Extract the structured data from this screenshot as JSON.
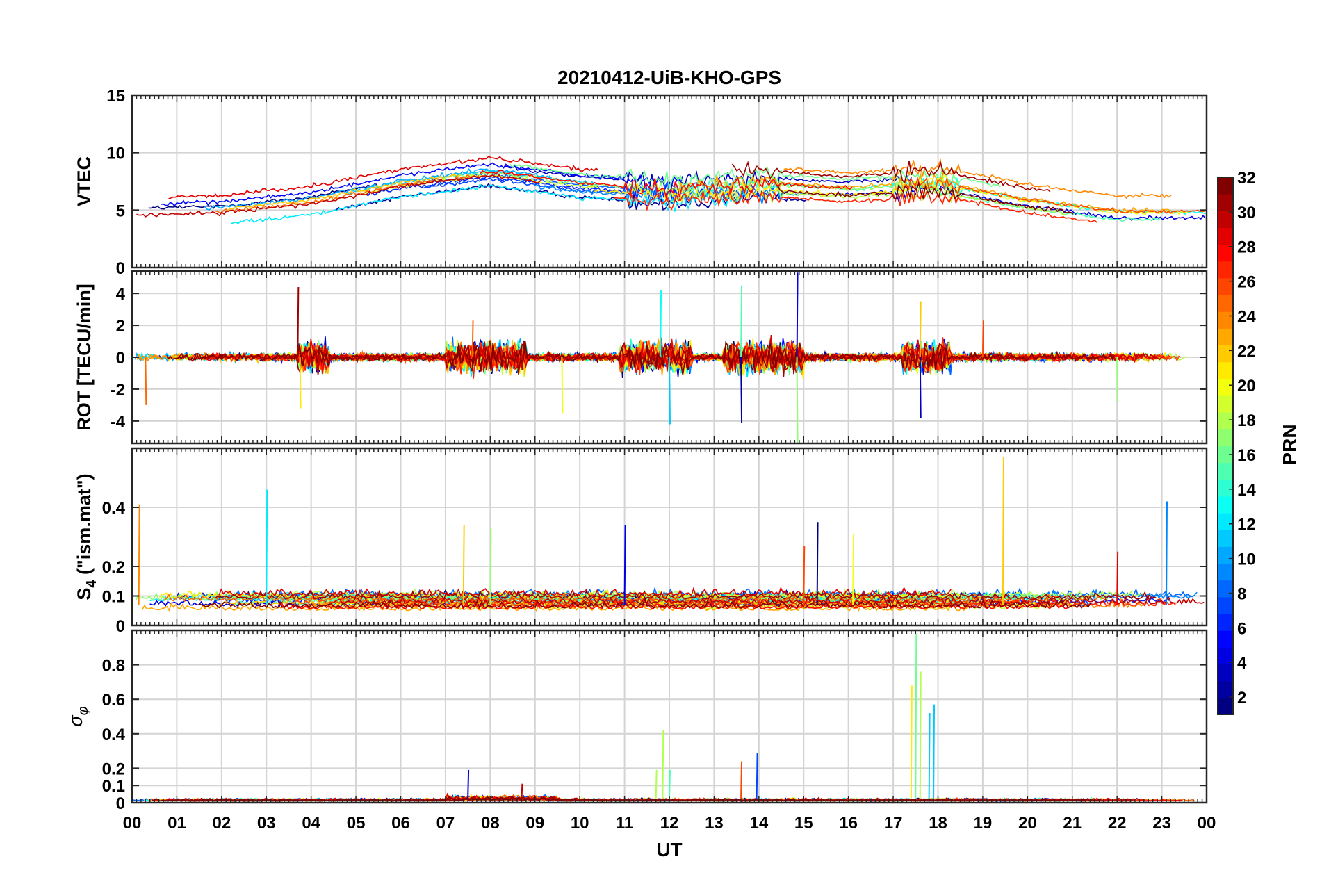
{
  "chart_data": {
    "type": "line",
    "title": "20210412-UiB-KHO-GPS",
    "xlabel": "UT",
    "x_tick_labels": [
      "00",
      "01",
      "02",
      "03",
      "04",
      "05",
      "06",
      "07",
      "08",
      "09",
      "10",
      "11",
      "12",
      "13",
      "14",
      "15",
      "16",
      "17",
      "18",
      "19",
      "20",
      "21",
      "22",
      "23",
      "00"
    ],
    "x_range_hours": [
      0,
      24
    ],
    "grid": true,
    "colorbar": {
      "label": "PRN",
      "range": [
        1,
        32
      ],
      "ticks": [
        2,
        4,
        6,
        8,
        10,
        12,
        14,
        16,
        18,
        20,
        22,
        24,
        26,
        28,
        30,
        32
      ],
      "colormap": "jet",
      "placement": "right"
    },
    "panels": [
      {
        "id": "vtec",
        "ylabel": "VTEC",
        "ylim": [
          0,
          15
        ],
        "yticks": [
          0,
          5,
          10,
          15
        ],
        "description_series": "VTEC per PRN, typical range 3-11 TECU, peak around 07-09 UT and 13-14 UT",
        "baseline_profile": {
          "hours": [
            0,
            2,
            4,
            6,
            8,
            10,
            12,
            14,
            16,
            18,
            20,
            22,
            24
          ],
          "values": [
            5,
            5.2,
            6,
            7.5,
            8.5,
            7.5,
            7,
            7.5,
            7,
            7.5,
            6,
            5,
            5
          ]
        }
      },
      {
        "id": "rot",
        "ylabel": "ROT [TECU/min]",
        "ylim": [
          -5.4,
          5.4
        ],
        "yticks": [
          -4,
          -2,
          0,
          2,
          4
        ],
        "bursts_hours": [
          [
            3.7,
            4.4
          ],
          [
            7.0,
            8.8
          ],
          [
            10.9,
            12.5
          ],
          [
            13.2,
            15.0
          ],
          [
            17.2,
            18.3
          ]
        ],
        "peaks": [
          {
            "hour": 0.3,
            "value": -3.0
          },
          {
            "hour": 3.7,
            "value": 4.4
          },
          {
            "hour": 3.75,
            "value": -3.2
          },
          {
            "hour": 7.6,
            "value": 2.3
          },
          {
            "hour": 9.6,
            "value": -3.5
          },
          {
            "hour": 11.8,
            "value": 4.2
          },
          {
            "hour": 12.0,
            "value": -4.2
          },
          {
            "hour": 13.6,
            "value": 4.5
          },
          {
            "hour": 13.6,
            "value": -4.1
          },
          {
            "hour": 14.85,
            "value": 5.3
          },
          {
            "hour": 14.85,
            "value": -5.4
          },
          {
            "hour": 17.6,
            "value": 3.5
          },
          {
            "hour": 17.6,
            "value": -3.8
          },
          {
            "hour": 19.0,
            "value": 2.3
          },
          {
            "hour": 22.0,
            "value": -2.8
          }
        ]
      },
      {
        "id": "s4",
        "ylabel": "S4 (\"ism.mat\")",
        "ylabel_main": "S",
        "ylabel_sub": "4",
        "ylabel_rest": " (\"ism.mat\")",
        "ylim": [
          0,
          0.6
        ],
        "yticks": [
          0,
          0.1,
          0.2,
          0.4
        ],
        "peaks": [
          {
            "hour": 0.15,
            "value": 0.41
          },
          {
            "hour": 3.0,
            "value": 0.46
          },
          {
            "hour": 7.4,
            "value": 0.34
          },
          {
            "hour": 8.0,
            "value": 0.33
          },
          {
            "hour": 11.0,
            "value": 0.34
          },
          {
            "hour": 15.0,
            "value": 0.27
          },
          {
            "hour": 15.3,
            "value": 0.35
          },
          {
            "hour": 16.1,
            "value": 0.31
          },
          {
            "hour": 19.45,
            "value": 0.57
          },
          {
            "hour": 22.0,
            "value": 0.25
          },
          {
            "hour": 23.1,
            "value": 0.42
          }
        ]
      },
      {
        "id": "sigma_phi",
        "ylabel": "σφ",
        "ylabel_main": "σ",
        "ylabel_sub": "φ",
        "ylim": [
          0,
          1.0
        ],
        "yticks": [
          0,
          0.1,
          0.2,
          0.4,
          0.6,
          0.8
        ],
        "peaks": [
          {
            "hour": 7.5,
            "value": 0.19
          },
          {
            "hour": 8.7,
            "value": 0.11
          },
          {
            "hour": 11.7,
            "value": 0.19
          },
          {
            "hour": 11.85,
            "value": 0.42
          },
          {
            "hour": 12.0,
            "value": 0.19
          },
          {
            "hour": 13.6,
            "value": 0.24
          },
          {
            "hour": 13.95,
            "value": 0.29
          },
          {
            "hour": 17.4,
            "value": 0.68
          },
          {
            "hour": 17.5,
            "value": 0.98
          },
          {
            "hour": 17.6,
            "value": 0.76
          },
          {
            "hour": 17.8,
            "value": 0.52
          },
          {
            "hour": 17.9,
            "value": 0.57
          }
        ]
      }
    ],
    "prn_count": 32
  }
}
